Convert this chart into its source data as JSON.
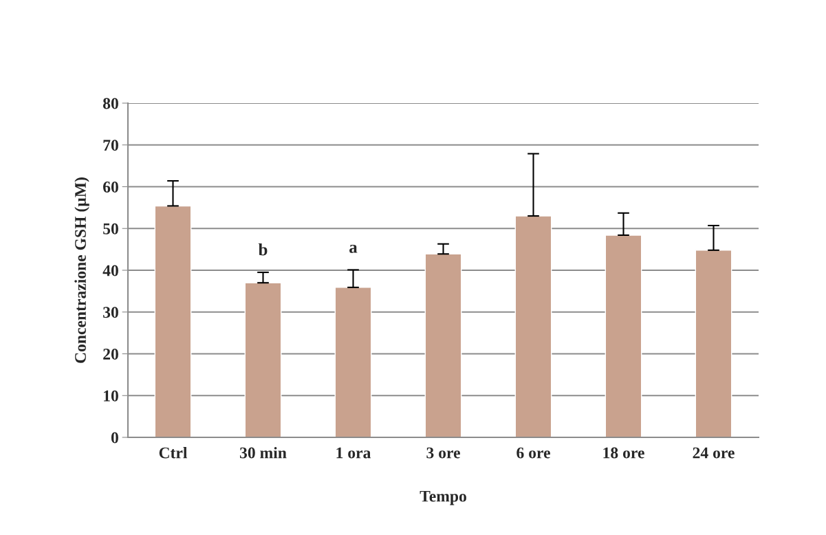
{
  "chart_data": {
    "type": "bar",
    "xlabel": "Tempo",
    "ylabel": "Concentrazione GSH (µM)",
    "categories": [
      "Ctrl",
      "30 min",
      "1 ora",
      "3 ore",
      "6 ore",
      "18 ore",
      "24 ore"
    ],
    "values": [
      55.4,
      37.0,
      35.9,
      43.9,
      53.0,
      48.4,
      44.8
    ],
    "errors": [
      6.0,
      2.5,
      4.2,
      2.4,
      14.9,
      5.3,
      5.9
    ],
    "color": "#c9a28e",
    "ylim": [
      0,
      80
    ],
    "yticks": [
      0,
      10,
      20,
      30,
      40,
      50,
      60,
      70,
      80
    ],
    "grid": "y",
    "value_labels": [
      null,
      "b",
      "a",
      null,
      null,
      null,
      null
    ]
  }
}
